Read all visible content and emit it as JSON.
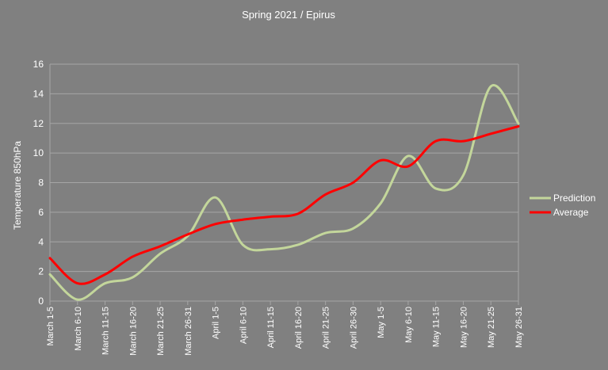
{
  "chart_data": {
    "type": "line",
    "title": "Spring 2021 / Epirus",
    "xlabel": "",
    "ylabel": "Temperature 850hPa",
    "ylim": [
      0,
      16
    ],
    "yticks": [
      0,
      2,
      4,
      6,
      8,
      10,
      12,
      14,
      16
    ],
    "grid": true,
    "legend_position": "right",
    "categories": [
      "March 1-5",
      "March 6-10",
      "March 11-15",
      "March 16-20",
      "March 21-25",
      "March 26-31",
      "April 1-5",
      "April 6-10",
      "April 11-15",
      "April 16-20",
      "April 21-25",
      "April 26-30",
      "May 1-5",
      "May 6-10",
      "May 11-15",
      "May 16-20",
      "May 21-25",
      "May 26-31"
    ],
    "series": [
      {
        "name": "Prediction",
        "color": "#c3d69b",
        "values": [
          1.8,
          0.1,
          1.2,
          1.6,
          3.2,
          4.4,
          7.0,
          3.8,
          3.5,
          3.8,
          4.6,
          4.9,
          6.6,
          9.8,
          7.6,
          8.5,
          14.5,
          12.0
        ]
      },
      {
        "name": "Average",
        "color": "#ff0000",
        "values": [
          2.9,
          1.2,
          1.8,
          3.0,
          3.7,
          4.5,
          5.2,
          5.5,
          5.7,
          5.9,
          7.2,
          8.0,
          9.5,
          9.1,
          10.8,
          10.8,
          11.3,
          11.8
        ]
      }
    ]
  }
}
